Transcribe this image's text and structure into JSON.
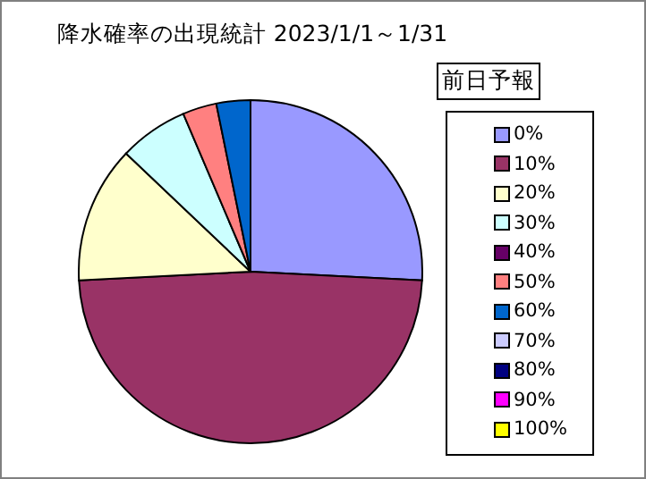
{
  "chart_data": {
    "type": "pie",
    "title": "降水確率の出現統計 2023/1/1～1/31",
    "legend_title": "前日予報",
    "legend": "right",
    "categories": [
      "0%",
      "10%",
      "20%",
      "30%",
      "40%",
      "50%",
      "60%",
      "70%",
      "80%",
      "90%",
      "100%"
    ],
    "values": [
      25.8,
      48.4,
      12.9,
      6.5,
      0,
      3.2,
      3.2,
      0,
      0,
      0,
      0
    ],
    "colors": [
      "#9999ff",
      "#993366",
      "#ffffcc",
      "#ccffff",
      "#660066",
      "#ff8080",
      "#0066cc",
      "#ccccff",
      "#000080",
      "#ff00ff",
      "#ffff00"
    ]
  }
}
